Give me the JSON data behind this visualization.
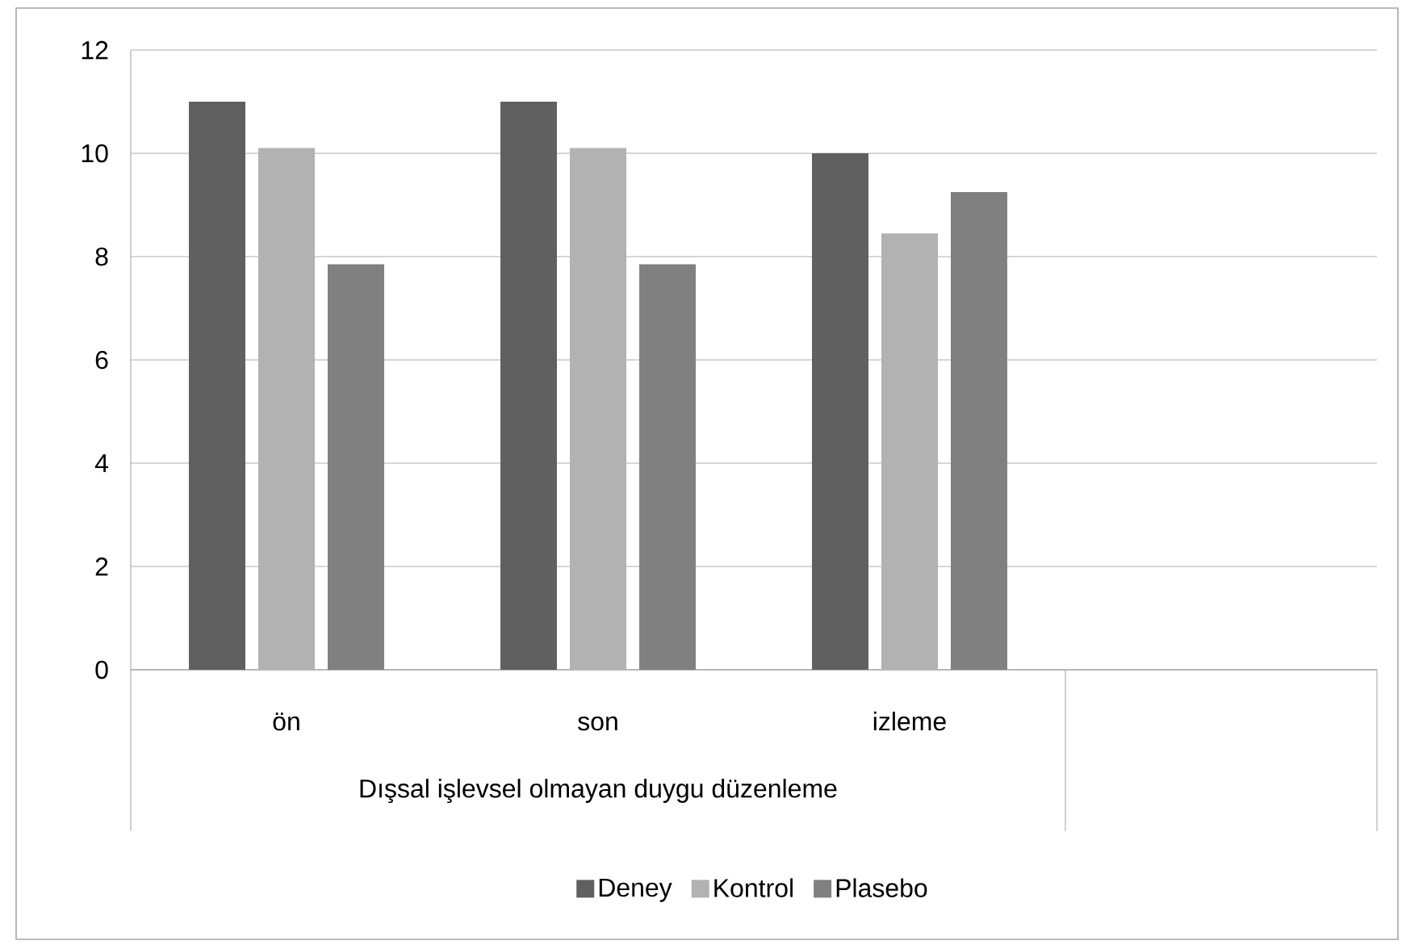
{
  "chart_data": {
    "type": "bar",
    "xlabel": "Dışsal işlevsel olmayan duygu düzenleme",
    "categories": [
      "ön",
      "son",
      "izleme",
      null
    ],
    "series": [
      {
        "name": "Deney",
        "color": "#606060",
        "values": [
          11,
          11,
          10,
          null
        ]
      },
      {
        "name": "Kontrol",
        "color": "#b2b2b2",
        "values": [
          10.1,
          10.1,
          8.45,
          null
        ]
      },
      {
        "name": "Plasebo",
        "color": "#808080",
        "values": [
          7.85,
          7.85,
          9.25,
          null
        ]
      }
    ],
    "ylim": [
      0,
      12
    ],
    "yticks": [
      0,
      2,
      4,
      6,
      8,
      10,
      12
    ],
    "grid": "y",
    "legend": "bottom"
  }
}
